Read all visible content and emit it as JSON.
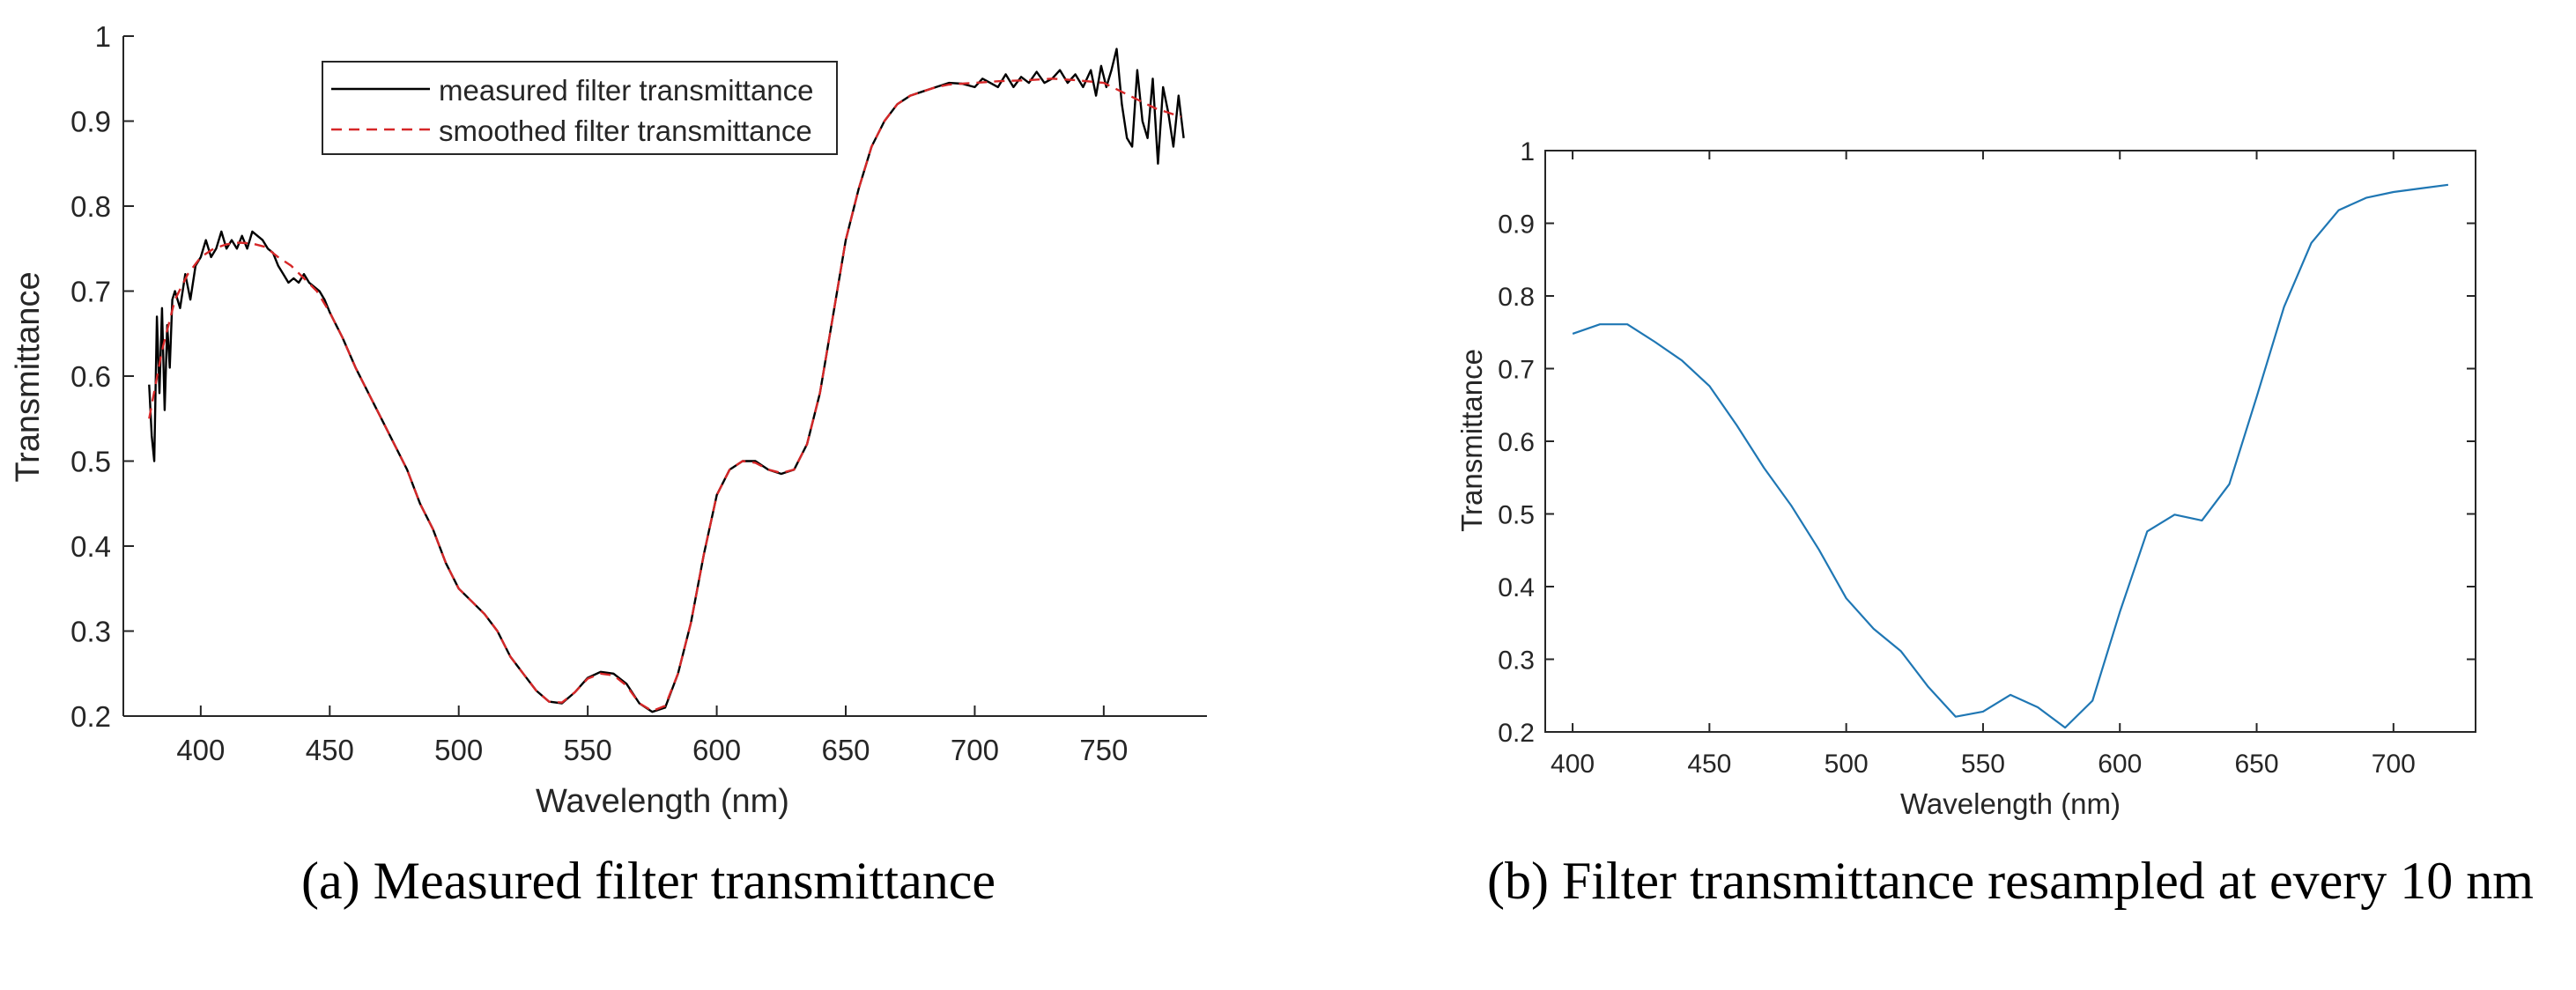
{
  "chart_data": [
    {
      "type": "line",
      "caption": "(a) Measured filter transmittance",
      "xlabel": "Wavelength (nm)",
      "ylabel": "Transmittance",
      "xlim": [
        370,
        790
      ],
      "ylim": [
        0.2,
        1
      ],
      "xticks": [
        400,
        450,
        500,
        550,
        600,
        650,
        700,
        750
      ],
      "yticks": [
        0.2,
        0.3,
        0.4,
        0.5,
        0.6,
        0.7,
        0.8,
        0.9,
        1
      ],
      "xtick_labels": [
        "400",
        "450",
        "500",
        "550",
        "600",
        "650",
        "700",
        "750"
      ],
      "ytick_labels": [
        "0.2",
        "0.3",
        "0.4",
        "0.5",
        "0.6",
        "0.7",
        "0.8",
        "0.9",
        "1"
      ],
      "grid": false,
      "box": "left-bottom axes only",
      "legend_position": "top-center",
      "series": [
        {
          "name": "measured filter transmittance",
          "color": "#000000",
          "style": "solid",
          "x": [
            380,
            381,
            382,
            383,
            384,
            385,
            386,
            387,
            388,
            389,
            390,
            392,
            394,
            396,
            398,
            400,
            402,
            404,
            406,
            408,
            410,
            412,
            414,
            416,
            418,
            420,
            422,
            424,
            426,
            428,
            430,
            432,
            434,
            436,
            438,
            440,
            442,
            444,
            446,
            448,
            450,
            455,
            460,
            465,
            470,
            475,
            480,
            485,
            490,
            495,
            500,
            505,
            510,
            515,
            520,
            525,
            530,
            535,
            540,
            545,
            550,
            555,
            560,
            565,
            570,
            575,
            580,
            585,
            590,
            595,
            600,
            605,
            610,
            615,
            620,
            625,
            630,
            635,
            640,
            645,
            650,
            655,
            660,
            665,
            670,
            675,
            680,
            685,
            690,
            695,
            700,
            703,
            706,
            709,
            712,
            715,
            718,
            721,
            724,
            727,
            730,
            733,
            736,
            739,
            742,
            745,
            747,
            749,
            751,
            753,
            755,
            757,
            759,
            761,
            763,
            765,
            767,
            769,
            771,
            773,
            775,
            777,
            779,
            781
          ],
          "y": [
            0.59,
            0.53,
            0.5,
            0.67,
            0.58,
            0.68,
            0.56,
            0.66,
            0.61,
            0.69,
            0.7,
            0.68,
            0.72,
            0.69,
            0.73,
            0.74,
            0.76,
            0.74,
            0.75,
            0.77,
            0.75,
            0.76,
            0.75,
            0.765,
            0.75,
            0.77,
            0.765,
            0.76,
            0.75,
            0.745,
            0.73,
            0.72,
            0.71,
            0.715,
            0.71,
            0.72,
            0.71,
            0.705,
            0.7,
            0.69,
            0.675,
            0.645,
            0.61,
            0.58,
            0.55,
            0.52,
            0.49,
            0.45,
            0.42,
            0.38,
            0.35,
            0.335,
            0.32,
            0.3,
            0.27,
            0.25,
            0.23,
            0.217,
            0.215,
            0.228,
            0.245,
            0.252,
            0.25,
            0.238,
            0.215,
            0.205,
            0.21,
            0.25,
            0.31,
            0.39,
            0.46,
            0.49,
            0.5,
            0.5,
            0.49,
            0.485,
            0.49,
            0.52,
            0.58,
            0.67,
            0.76,
            0.82,
            0.87,
            0.9,
            0.92,
            0.93,
            0.935,
            0.94,
            0.945,
            0.944,
            0.94,
            0.95,
            0.945,
            0.94,
            0.955,
            0.94,
            0.952,
            0.945,
            0.958,
            0.945,
            0.95,
            0.96,
            0.945,
            0.955,
            0.94,
            0.96,
            0.93,
            0.965,
            0.94,
            0.96,
            0.985,
            0.92,
            0.88,
            0.87,
            0.96,
            0.9,
            0.88,
            0.95,
            0.85,
            0.94,
            0.91,
            0.87,
            0.93,
            0.88
          ]
        },
        {
          "name": "smoothed filter transmittance",
          "color": "#d62728",
          "style": "dashed",
          "x": [
            380,
            385,
            390,
            395,
            400,
            405,
            410,
            415,
            420,
            425,
            430,
            435,
            440,
            445,
            450,
            455,
            460,
            465,
            470,
            475,
            480,
            485,
            490,
            495,
            500,
            505,
            510,
            515,
            520,
            525,
            530,
            535,
            540,
            545,
            550,
            555,
            560,
            565,
            570,
            575,
            580,
            585,
            590,
            595,
            600,
            605,
            610,
            615,
            620,
            625,
            630,
            635,
            640,
            645,
            650,
            655,
            660,
            665,
            670,
            675,
            680,
            685,
            690,
            695,
            700,
            710,
            720,
            730,
            740,
            750,
            760,
            770,
            780
          ],
          "y": [
            0.55,
            0.63,
            0.69,
            0.72,
            0.74,
            0.75,
            0.755,
            0.757,
            0.756,
            0.752,
            0.74,
            0.73,
            0.715,
            0.7,
            0.675,
            0.645,
            0.61,
            0.58,
            0.55,
            0.52,
            0.49,
            0.45,
            0.42,
            0.38,
            0.35,
            0.335,
            0.32,
            0.3,
            0.27,
            0.25,
            0.23,
            0.217,
            0.216,
            0.228,
            0.244,
            0.25,
            0.248,
            0.236,
            0.215,
            0.206,
            0.212,
            0.25,
            0.31,
            0.39,
            0.46,
            0.49,
            0.5,
            0.498,
            0.49,
            0.486,
            0.49,
            0.52,
            0.58,
            0.67,
            0.76,
            0.82,
            0.87,
            0.9,
            0.92,
            0.93,
            0.935,
            0.94,
            0.943,
            0.944,
            0.945,
            0.947,
            0.948,
            0.95,
            0.948,
            0.945,
            0.93,
            0.915,
            0.905
          ]
        }
      ]
    },
    {
      "type": "line",
      "caption": "(b) Filter transmittance resampled at every 10 nm",
      "xlabel": "Wavelength (nm)",
      "ylabel": "Transmittance",
      "xlim": [
        390,
        730
      ],
      "ylim": [
        0.2,
        1
      ],
      "xticks": [
        400,
        450,
        500,
        550,
        600,
        650,
        700
      ],
      "yticks": [
        0.2,
        0.3,
        0.4,
        0.5,
        0.6,
        0.7,
        0.8,
        0.9,
        1
      ],
      "xtick_labels": [
        "400",
        "450",
        "500",
        "550",
        "600",
        "650",
        "700"
      ],
      "ytick_labels": [
        "0.2",
        "0.3",
        "0.4",
        "0.5",
        "0.6",
        "0.7",
        "0.8",
        "0.9",
        "1"
      ],
      "grid": false,
      "box": "full box with ticks on all sides",
      "series": [
        {
          "color": "#1f77b4",
          "style": "solid",
          "x": [
            400,
            410,
            420,
            430,
            440,
            450,
            460,
            470,
            480,
            490,
            500,
            510,
            520,
            530,
            540,
            550,
            560,
            570,
            580,
            590,
            600,
            610,
            620,
            630,
            640,
            650,
            660,
            670,
            680,
            690,
            700,
            710,
            720
          ],
          "y": [
            0.748,
            0.761,
            0.761,
            0.737,
            0.711,
            0.676,
            0.622,
            0.563,
            0.511,
            0.451,
            0.384,
            0.342,
            0.311,
            0.262,
            0.221,
            0.228,
            0.251,
            0.234,
            0.206,
            0.243,
            0.365,
            0.476,
            0.499,
            0.491,
            0.541,
            0.661,
            0.785,
            0.873,
            0.918,
            0.935,
            0.943,
            0.948,
            0.953
          ]
        }
      ]
    }
  ]
}
